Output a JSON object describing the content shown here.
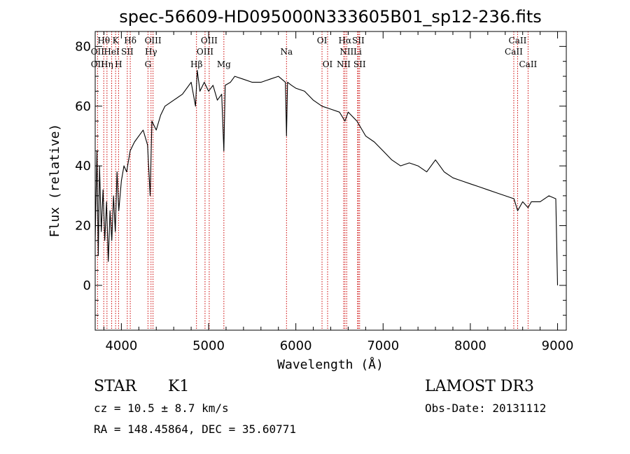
{
  "chart_data": {
    "type": "line",
    "title": "spec-56609-HD095000N333605B01_sp12-236.fits",
    "xlabel": "Wavelength (Å)",
    "ylabel": "Flux (relative)",
    "xlim": [
      3700,
      9100
    ],
    "ylim": [
      -15,
      85
    ],
    "xticks": [
      4000,
      5000,
      6000,
      7000,
      8000,
      9000
    ],
    "xtick_labels": [
      "4000",
      "5000",
      "6000",
      "7000",
      "8000",
      "9000"
    ],
    "yticks": [
      0,
      20,
      40,
      60,
      80
    ],
    "ytick_labels": [
      "0",
      "20",
      "40",
      "60",
      "80"
    ],
    "series": [
      {
        "name": "flux",
        "x": [
          3700,
          3720,
          3735,
          3750,
          3770,
          3790,
          3810,
          3830,
          3850,
          3870,
          3890,
          3910,
          3930,
          3950,
          3970,
          4000,
          4030,
          4060,
          4100,
          4150,
          4200,
          4250,
          4300,
          4330,
          4350,
          4400,
          4450,
          4500,
          4600,
          4700,
          4800,
          4850,
          4870,
          4900,
          4950,
          5000,
          5050,
          5100,
          5150,
          5175,
          5190,
          5250,
          5300,
          5400,
          5500,
          5600,
          5700,
          5800,
          5880,
          5893,
          5905,
          5950,
          6000,
          6100,
          6200,
          6300,
          6400,
          6500,
          6563,
          6600,
          6700,
          6800,
          6900,
          7000,
          7100,
          7200,
          7300,
          7400,
          7500,
          7600,
          7650,
          7700,
          7800,
          7900,
          8000,
          8100,
          8200,
          8300,
          8400,
          8500,
          8542,
          8600,
          8662,
          8700,
          8800,
          8900,
          8980,
          9000
        ],
        "y": [
          15,
          45,
          10,
          40,
          18,
          32,
          15,
          28,
          8,
          25,
          15,
          30,
          18,
          38,
          25,
          35,
          40,
          38,
          45,
          48,
          50,
          52,
          47,
          30,
          55,
          52,
          57,
          60,
          62,
          64,
          68,
          60,
          72,
          65,
          68,
          65,
          67,
          62,
          64,
          45,
          67,
          68,
          70,
          69,
          68,
          68,
          69,
          70,
          68,
          50,
          68,
          67,
          66,
          65,
          62,
          60,
          59,
          58,
          55,
          58,
          55,
          50,
          48,
          45,
          42,
          40,
          41,
          40,
          38,
          42,
          40,
          38,
          36,
          35,
          34,
          33,
          32,
          31,
          30,
          29,
          25,
          28,
          26,
          28,
          28,
          30,
          29,
          0
        ]
      }
    ],
    "lines_top": [
      {
        "label": "Hθ",
        "x": 3798
      },
      {
        "label": "K",
        "x": 3934
      },
      {
        "label": "Hδ",
        "x": 4102
      },
      {
        "label": "OIII",
        "x": 4363
      },
      {
        "label": "OIII",
        "x": 5007
      },
      {
        "label": "OI",
        "x": 6300
      },
      {
        "label": "Hα",
        "x": 6563
      },
      {
        "label": "SII",
        "x": 6716
      },
      {
        "label": "CaII",
        "x": 8542
      }
    ],
    "lines_mid": [
      {
        "label": "OII",
        "x": 3727
      },
      {
        "label": "HeI",
        "x": 3889
      },
      {
        "label": "SII",
        "x": 4068
      },
      {
        "label": "Hγ",
        "x": 4340
      },
      {
        "label": "OIII",
        "x": 4959
      },
      {
        "label": "Na",
        "x": 5893
      },
      {
        "label": "NII",
        "x": 6583
      },
      {
        "label": "Li",
        "x": 6708
      },
      {
        "label": "CaII",
        "x": 8498
      }
    ],
    "lines_bot": [
      {
        "label": "OII",
        "x": 3727
      },
      {
        "label": "Hη",
        "x": 3835
      },
      {
        "label": "H",
        "x": 3968
      },
      {
        "label": "G",
        "x": 4305
      },
      {
        "label": "Hβ",
        "x": 4861
      },
      {
        "label": "Mg",
        "x": 5175
      },
      {
        "label": "OI",
        "x": 6364
      },
      {
        "label": "NII",
        "x": 6548
      },
      {
        "label": "SII",
        "x": 6731
      },
      {
        "label": "CaII",
        "x": 8662
      }
    ],
    "line_color": "#000000",
    "marker_color": "#cc0000"
  },
  "info": {
    "object_class": "STAR",
    "subclass": "K1",
    "survey": "LAMOST DR3",
    "redshift": "cz = 10.5 ± 8.7 km/s",
    "obs_date": "Obs-Date: 20131112",
    "coords": "RA = 148.45864, DEC =  35.60771"
  }
}
